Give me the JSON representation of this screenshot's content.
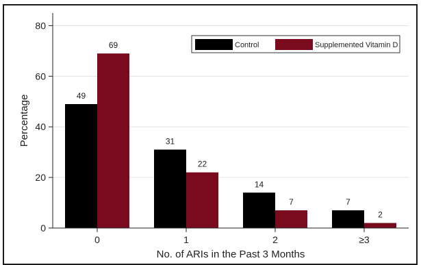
{
  "chart_data": {
    "type": "bar",
    "categories": [
      "0",
      "1",
      "2",
      "≥3"
    ],
    "series": [
      {
        "name": "Control",
        "values": [
          49,
          31,
          14,
          7
        ],
        "color": "#000000"
      },
      {
        "name": "Supplemented Vitamin D",
        "values": [
          69,
          22,
          7,
          2
        ],
        "color": "#7a0a1d"
      }
    ],
    "data_labels": [
      [
        "49",
        "31",
        "14",
        "7"
      ],
      [
        "69",
        "22",
        "7",
        "2"
      ]
    ],
    "xlabel": "No. of ARIs in the Past 3 Months",
    "ylabel": "Percentage",
    "ylim": [
      0,
      85
    ],
    "yticks": [
      0,
      20,
      40,
      60,
      80
    ],
    "ytick_labels": [
      "0",
      "20",
      "40",
      "60",
      "80"
    ],
    "grid": true,
    "legend_position": "top-right"
  }
}
